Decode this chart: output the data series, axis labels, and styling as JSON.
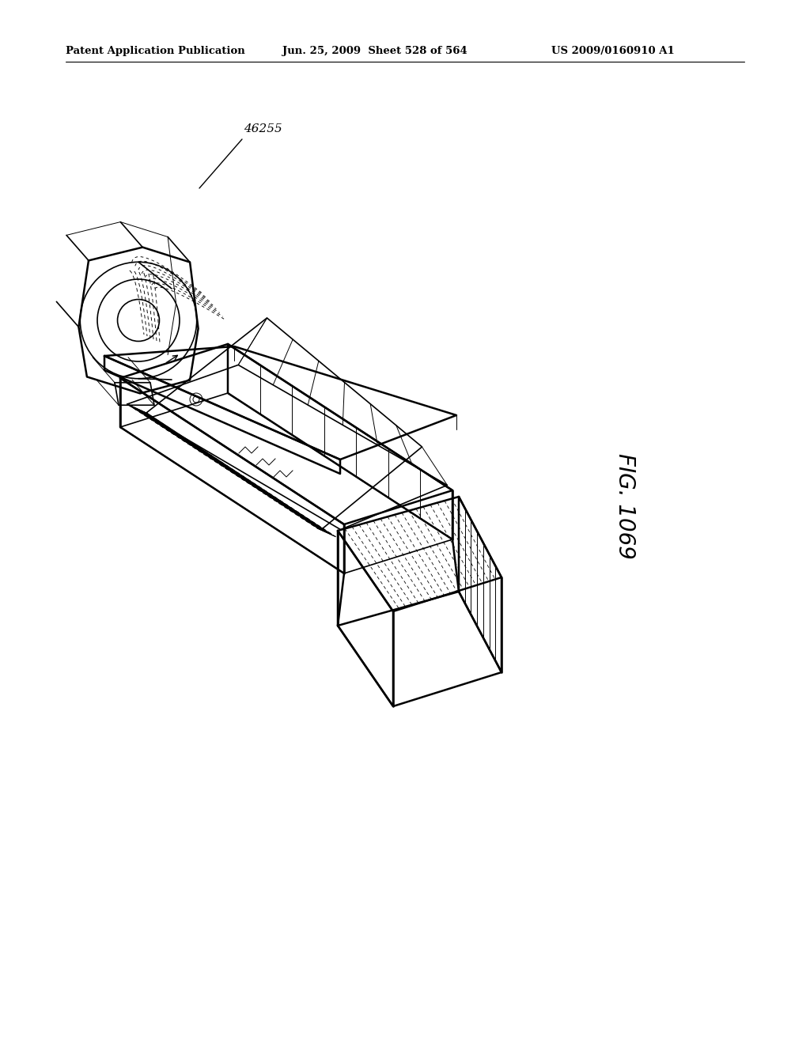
{
  "title_left": "Patent Application Publication",
  "title_center": "Jun. 25, 2009  Sheet 528 of 564",
  "title_right": "US 2009/0160910 A1",
  "fig_label": "FIG. 1069",
  "part_number": "46255",
  "bg_color": "#ffffff",
  "line_color": "#000000",
  "title_fontsize": 9.5,
  "fig_label_fontsize": 20,
  "lw_thick": 1.8,
  "lw_med": 1.2,
  "lw_thin": 0.7,
  "lw_dash": 0.65
}
